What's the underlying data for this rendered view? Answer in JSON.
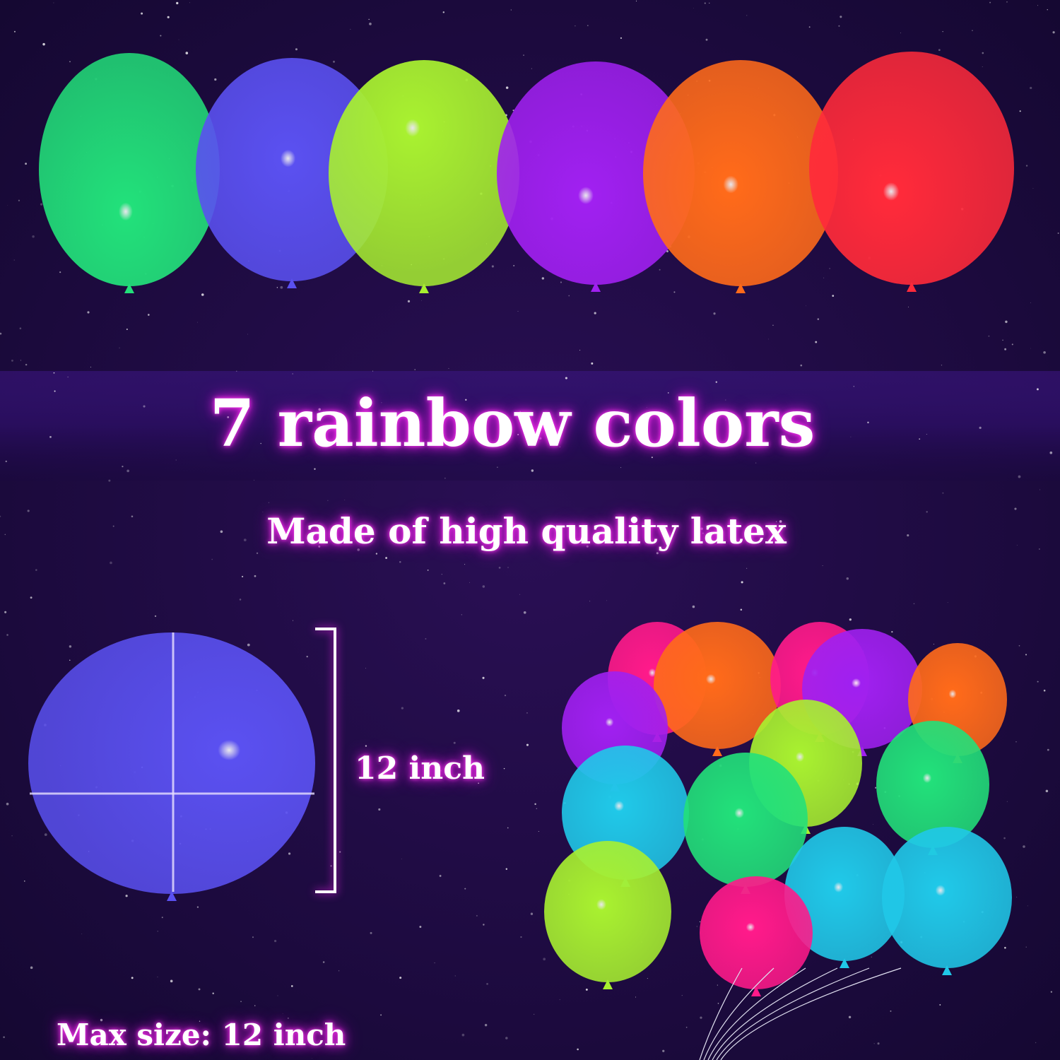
{
  "headline": "7 rainbow colors",
  "subline": "Made of high quality latex",
  "dimension_label": "12 inch",
  "max_size_label": "Max size: 12 inch",
  "colors": {
    "background": "#1b0b3c",
    "band": "#2a1060",
    "glow": "#e020e0",
    "green": "#22e07a",
    "blue": "#5a50f0",
    "yellow_green": "#a8f030",
    "purple": "#a020f0",
    "orange": "#ff6a1a",
    "red": "#ff2a3a",
    "cyan": "#20c8e8",
    "pink": "#ff1a8a"
  }
}
